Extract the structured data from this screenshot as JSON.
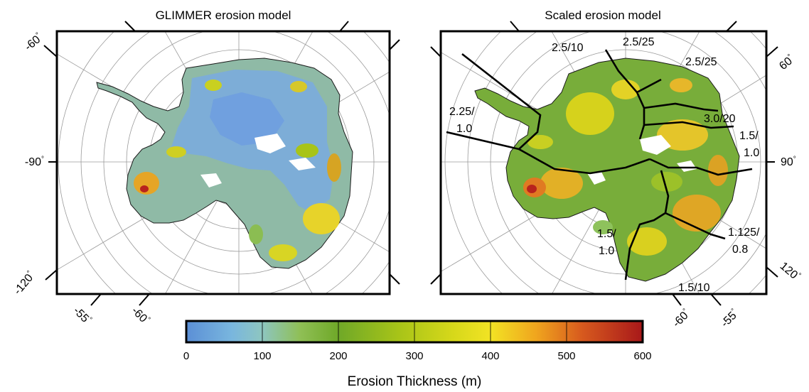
{
  "left_map": {
    "title": "GLIMMER erosion model",
    "labels": {
      "lat_top": "-60",
      "lon_mid": "-90",
      "lon_bottom": "-120",
      "lat_bottom_left": "-55",
      "lat_bottom_right": "-60"
    }
  },
  "right_map": {
    "title": "Scaled erosion model",
    "labels": {
      "lat_top": "60",
      "lon_mid": "90",
      "lon_bottom": "120",
      "lat_bottom_left": "-60",
      "lat_bottom_right": "-55"
    },
    "sector_labels": [
      {
        "text": "2.5/10",
        "line2": ""
      },
      {
        "text": "2.5/25",
        "line2": ""
      },
      {
        "text": "2.5/25",
        "line2": ""
      },
      {
        "text": "2.25/",
        "line2": "1.0"
      },
      {
        "text": "3.0/20",
        "line2": ""
      },
      {
        "text": "1.5/",
        "line2": "1.0"
      },
      {
        "text": "1.5/",
        "line2": "1.0"
      },
      {
        "text": "1.125/",
        "line2": "0.8"
      },
      {
        "text": "1.5/10",
        "line2": ""
      }
    ]
  },
  "colorbar": {
    "title": "Erosion Thickness (m)",
    "ticks": [
      "0",
      "100",
      "200",
      "300",
      "400",
      "500",
      "600"
    ],
    "range": [
      0,
      600
    ],
    "stops": [
      {
        "value": 0,
        "color": "#5b8fd6"
      },
      {
        "value": 60,
        "color": "#79b6de"
      },
      {
        "value": 100,
        "color": "#8ec6c0"
      },
      {
        "value": 150,
        "color": "#8fbf55"
      },
      {
        "value": 200,
        "color": "#6fa828"
      },
      {
        "value": 280,
        "color": "#a8c418"
      },
      {
        "value": 350,
        "color": "#d6d81a"
      },
      {
        "value": 400,
        "color": "#f2e324"
      },
      {
        "value": 460,
        "color": "#f0a51e"
      },
      {
        "value": 520,
        "color": "#d75a1e"
      },
      {
        "value": 600,
        "color": "#a8181a"
      }
    ]
  }
}
